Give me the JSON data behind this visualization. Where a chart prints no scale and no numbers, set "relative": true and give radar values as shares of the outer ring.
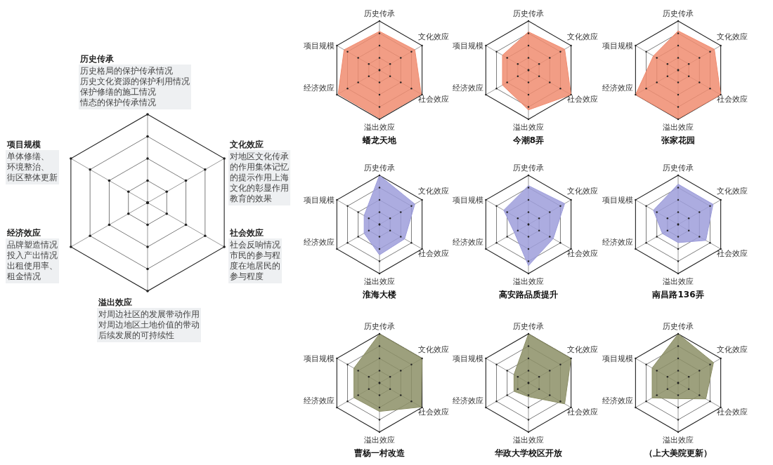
{
  "chart_data": [
    {
      "type": "radar",
      "relative": true,
      "categories": [
        "历史传承",
        "文化效应",
        "社会效应",
        "溢出效应",
        "经济效应",
        "项目规模"
      ],
      "annotations": [
        "历史格局的保护传承情况",
        "历史文化资源的保护利用情况",
        "保护修缮的施工情况",
        "情态的保护传承情况",
        "对地区文化传承",
        "的作用集体记忆",
        "的提示作用上海",
        "文化的彰显作用",
        "教育的效果",
        "社会反响情况",
        "市民的参与程",
        "度在地居民的",
        "参与程度",
        "对周边社区的发展带动作用",
        "对周边地区土地价值的带动",
        "后续发展的可持续性",
        "品牌塑造情况",
        "投入产出情况",
        "出租使用率、",
        "租金情况",
        "单体修缮、",
        "环境整治、",
        "街区整体更新"
      ]
    },
    {
      "type": "radar",
      "relative": true,
      "title": "蟠龙天地",
      "categories": [
        "历史传承",
        "文化效应",
        "社会效应",
        "溢出效应",
        "经济效应",
        "项目规模"
      ],
      "series": [
        {
          "color": "#f08c70",
          "values": [
            0.79,
            0.83,
            0.98,
            0.98,
            0.97,
            0.83
          ]
        }
      ]
    },
    {
      "type": "radar",
      "relative": true,
      "title": "今潮8弄",
      "categories": [
        "历史传承",
        "文化效应",
        "社会效应",
        "溢出效应",
        "经济效应",
        "项目规模"
      ],
      "series": [
        {
          "color": "#f08c70",
          "values": [
            0.78,
            0.85,
            1.0,
            0.81,
            0.61,
            0.61
          ]
        }
      ]
    },
    {
      "type": "radar",
      "relative": true,
      "title": "张家花园",
      "categories": [
        "历史传承",
        "文化效应",
        "社会效应",
        "溢出效应",
        "经济效应",
        "项目规模"
      ],
      "series": [
        {
          "color": "#f08c70",
          "values": [
            0.8,
            0.85,
            1.0,
            0.99,
            1.0,
            0.58
          ]
        }
      ]
    },
    {
      "type": "radar",
      "relative": true,
      "title": "淮海大楼",
      "categories": [
        "历史传承",
        "文化效应",
        "社会效应",
        "溢出效应",
        "经济效应",
        "项目规模"
      ],
      "series": [
        {
          "color": "#9d9ddb",
          "values": [
            1.0,
            0.83,
            0.59,
            0.62,
            0.36,
            0.36
          ]
        }
      ]
    },
    {
      "type": "radar",
      "relative": true,
      "title": "高安路品质提升",
      "categories": [
        "历史传承",
        "文化效应",
        "社会效应",
        "溢出效应",
        "经济效应",
        "项目规模"
      ],
      "series": [
        {
          "color": "#9d9ddb",
          "values": [
            0.79,
            0.85,
            0.58,
            0.84,
            0.33,
            0.58
          ]
        }
      ]
    },
    {
      "type": "radar",
      "relative": true,
      "title": "南昌路136弄",
      "categories": [
        "历史传承",
        "文化效应",
        "社会效应",
        "溢出效应",
        "经济效应",
        "项目规模"
      ],
      "series": [
        {
          "color": "#9d9ddb",
          "values": [
            0.82,
            0.82,
            0.65,
            0.37,
            0.37,
            0.58
          ]
        }
      ]
    },
    {
      "type": "radar",
      "relative": true,
      "title": "曹杨一村改造",
      "categories": [
        "历史传承",
        "文化效应",
        "社会效应",
        "溢出效应",
        "经济效应",
        "项目规模"
      ],
      "series": [
        {
          "color": "#8c8f66",
          "values": [
            1.0,
            1.0,
            0.98,
            0.58,
            0.6,
            0.6
          ]
        }
      ]
    },
    {
      "type": "radar",
      "relative": true,
      "title": "华政大学校区开放",
      "categories": [
        "历史传承",
        "文化效应",
        "社会效应",
        "溢出效应",
        "经济效应",
        "项目规模"
      ],
      "series": [
        {
          "color": "#8c8f66",
          "values": [
            1.0,
            1.0,
            0.85,
            0.28,
            0.34,
            0.34
          ]
        }
      ]
    },
    {
      "type": "radar",
      "relative": true,
      "title": "（上大美院更新）",
      "categories": [
        "历史传承",
        "文化效应",
        "社会效应",
        "溢出效应",
        "经济效应",
        "项目规模"
      ],
      "series": [
        {
          "color": "#8c8f66",
          "values": [
            1.0,
            0.83,
            0.65,
            0.32,
            0.61,
            0.61
          ]
        }
      ]
    }
  ]
}
